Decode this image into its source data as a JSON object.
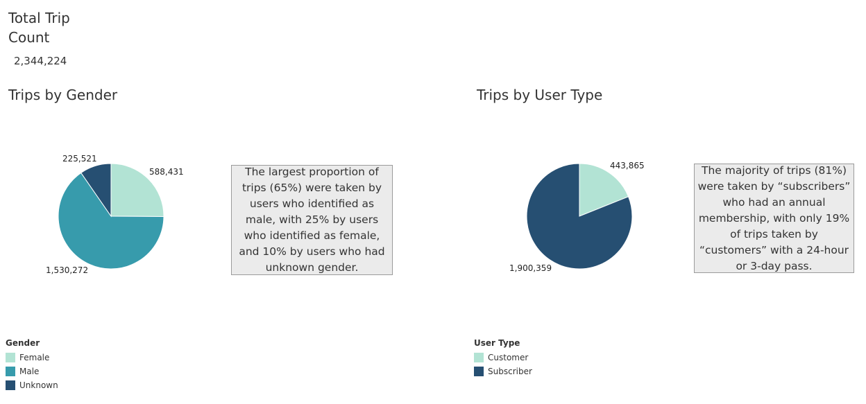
{
  "kpi": {
    "title": "Total Trip Count",
    "value": "2,344,224"
  },
  "gender_section": {
    "title": "Trips by Gender",
    "note": "The largest proportion of trips (65%) were taken by users who identified as male, with 25% by users who identified as female, and 10% by users who had unknown gender.",
    "legend_title": "Gender",
    "legend": [
      {
        "label": "Female",
        "color": "#b2e3d4"
      },
      {
        "label": "Male",
        "color": "#379bac"
      },
      {
        "label": "Unknown",
        "color": "#264f72"
      }
    ]
  },
  "usertype_section": {
    "title": "Trips by User Type",
    "note": "The majority of trips (81%) were taken by “subscribers” who had an annual membership, with only 19% of trips taken by “customers” with a 24-hour or 3-day pass.",
    "legend_title": "User Type",
    "legend": [
      {
        "label": "Customer",
        "color": "#b2e3d4"
      },
      {
        "label": "Subscriber",
        "color": "#264f72"
      }
    ]
  },
  "chart_data": [
    {
      "type": "pie",
      "title": "Trips by Gender",
      "categories": [
        "Female",
        "Male",
        "Unknown"
      ],
      "values": [
        588431,
        1530272,
        225521
      ],
      "value_labels": [
        "588,431",
        "1,530,272",
        "225,521"
      ],
      "colors": [
        "#b2e3d4",
        "#379bac",
        "#264f72"
      ]
    },
    {
      "type": "pie",
      "title": "Trips by User Type",
      "categories": [
        "Customer",
        "Subscriber"
      ],
      "values": [
        443865,
        1900359
      ],
      "value_labels": [
        "443,865",
        "1,900,359"
      ],
      "colors": [
        "#b2e3d4",
        "#264f72"
      ]
    }
  ]
}
